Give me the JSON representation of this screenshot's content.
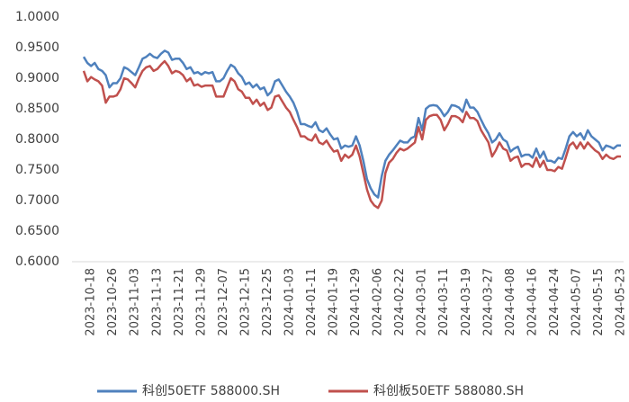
{
  "chart_data": {
    "type": "line",
    "categories": [
      null,
      null,
      "2023-10-18",
      null,
      null,
      null,
      null,
      null,
      "2023-10-26",
      null,
      null,
      null,
      null,
      null,
      "2023-11-03",
      null,
      null,
      null,
      null,
      null,
      "2023-11-13",
      null,
      null,
      null,
      null,
      null,
      "2023-11-21",
      null,
      null,
      null,
      null,
      null,
      "2023-11-29",
      null,
      null,
      null,
      null,
      null,
      "2023-12-07",
      null,
      null,
      null,
      null,
      null,
      "2023-12-15",
      null,
      null,
      null,
      null,
      null,
      "2023-12-25",
      null,
      null,
      null,
      null,
      null,
      "2024-01-03",
      null,
      null,
      null,
      null,
      null,
      "2024-01-11",
      null,
      null,
      null,
      null,
      null,
      "2024-01-19",
      null,
      null,
      null,
      null,
      null,
      "2024-01-29",
      null,
      null,
      null,
      null,
      null,
      "2024-02-06",
      null,
      null,
      null,
      null,
      null,
      "2024-02-22",
      null,
      null,
      null,
      null,
      null,
      "2024-03-01",
      null,
      null,
      null,
      null,
      null,
      "2024-03-11",
      null,
      null,
      null,
      null,
      null,
      "2024-03-19",
      null,
      null,
      null,
      null,
      null,
      "2024-03-27",
      null,
      null,
      null,
      null,
      null,
      "2024-04-08",
      null,
      null,
      null,
      null,
      null,
      "2024-04-16",
      null,
      null,
      null,
      null,
      null,
      "2024-04-24",
      null,
      null,
      null,
      null,
      null,
      "2024-05-07",
      null,
      null,
      null,
      null,
      null,
      "2024-05-15",
      null,
      null,
      null,
      null,
      null,
      "2024-05-23"
    ],
    "series": [
      {
        "name": "科创50ETF 588000.SH",
        "color": "#4f81bd",
        "values": [
          0.935,
          0.925,
          0.92,
          0.925,
          0.915,
          0.912,
          0.905,
          0.885,
          0.892,
          0.892,
          0.9,
          0.918,
          0.915,
          0.91,
          0.905,
          0.918,
          0.932,
          0.935,
          0.94,
          0.935,
          0.933,
          0.94,
          0.945,
          0.942,
          0.93,
          0.932,
          0.932,
          0.925,
          0.915,
          0.918,
          0.908,
          0.91,
          0.906,
          0.91,
          0.908,
          0.91,
          0.895,
          0.895,
          0.9,
          0.912,
          0.922,
          0.918,
          0.908,
          0.902,
          0.89,
          0.893,
          0.885,
          0.89,
          0.882,
          0.885,
          0.872,
          0.878,
          0.895,
          0.898,
          0.888,
          0.878,
          0.87,
          0.86,
          0.845,
          0.825,
          0.825,
          0.822,
          0.82,
          0.828,
          0.815,
          0.812,
          0.818,
          0.808,
          0.8,
          0.802,
          0.785,
          0.79,
          0.788,
          0.79,
          0.805,
          0.79,
          0.765,
          0.735,
          0.72,
          0.71,
          0.705,
          0.74,
          0.765,
          0.775,
          0.782,
          0.79,
          0.798,
          0.795,
          0.795,
          0.802,
          0.805,
          0.835,
          0.815,
          0.85,
          0.855,
          0.856,
          0.855,
          0.848,
          0.838,
          0.845,
          0.856,
          0.855,
          0.852,
          0.845,
          0.865,
          0.852,
          0.852,
          0.845,
          0.832,
          0.82,
          0.81,
          0.795,
          0.8,
          0.81,
          0.8,
          0.796,
          0.78,
          0.785,
          0.788,
          0.772,
          0.775,
          0.775,
          0.77,
          0.785,
          0.77,
          0.78,
          0.765,
          0.765,
          0.762,
          0.77,
          0.768,
          0.785,
          0.805,
          0.812,
          0.805,
          0.81,
          0.8,
          0.815,
          0.805,
          0.8,
          0.795,
          0.782,
          0.79,
          0.788,
          0.785,
          0.79,
          0.79
        ]
      },
      {
        "name": "科创板50ETF 588080.SH",
        "color": "#c0504d",
        "values": [
          0.912,
          0.895,
          0.902,
          0.898,
          0.895,
          0.888,
          0.86,
          0.87,
          0.87,
          0.872,
          0.882,
          0.9,
          0.898,
          0.892,
          0.885,
          0.9,
          0.912,
          0.918,
          0.92,
          0.912,
          0.915,
          0.922,
          0.928,
          0.92,
          0.908,
          0.912,
          0.91,
          0.905,
          0.895,
          0.9,
          0.888,
          0.89,
          0.886,
          0.888,
          0.888,
          0.888,
          0.87,
          0.87,
          0.87,
          0.885,
          0.9,
          0.895,
          0.882,
          0.878,
          0.868,
          0.868,
          0.858,
          0.865,
          0.855,
          0.86,
          0.848,
          0.852,
          0.87,
          0.872,
          0.862,
          0.852,
          0.845,
          0.832,
          0.82,
          0.805,
          0.805,
          0.8,
          0.798,
          0.808,
          0.795,
          0.792,
          0.798,
          0.788,
          0.78,
          0.782,
          0.765,
          0.775,
          0.77,
          0.775,
          0.79,
          0.772,
          0.745,
          0.718,
          0.7,
          0.692,
          0.688,
          0.7,
          0.745,
          0.762,
          0.768,
          0.778,
          0.785,
          0.782,
          0.785,
          0.79,
          0.795,
          0.82,
          0.8,
          0.832,
          0.838,
          0.84,
          0.84,
          0.832,
          0.815,
          0.825,
          0.838,
          0.838,
          0.835,
          0.828,
          0.845,
          0.835,
          0.835,
          0.83,
          0.815,
          0.805,
          0.795,
          0.772,
          0.782,
          0.795,
          0.785,
          0.782,
          0.765,
          0.77,
          0.772,
          0.755,
          0.76,
          0.76,
          0.755,
          0.77,
          0.755,
          0.765,
          0.75,
          0.75,
          0.748,
          0.755,
          0.752,
          0.77,
          0.79,
          0.795,
          0.785,
          0.795,
          0.785,
          0.795,
          0.788,
          0.782,
          0.778,
          0.768,
          0.775,
          0.77,
          0.768,
          0.772,
          0.772
        ]
      }
    ],
    "ylim": [
      0.6,
      1.0
    ],
    "yticks": [
      {
        "value": 0.6,
        "label": "0.6000"
      },
      {
        "value": 0.65,
        "label": "0.6500"
      },
      {
        "value": 0.7,
        "label": "0.7000"
      },
      {
        "value": 0.75,
        "label": "0.7500"
      },
      {
        "value": 0.8,
        "label": "0.8000"
      },
      {
        "value": 0.85,
        "label": "0.8500"
      },
      {
        "value": 0.9,
        "label": "0.9000"
      },
      {
        "value": 0.95,
        "label": "0.9500"
      },
      {
        "value": 1.0,
        "label": "1.0000"
      }
    ],
    "legend": "bottom"
  }
}
